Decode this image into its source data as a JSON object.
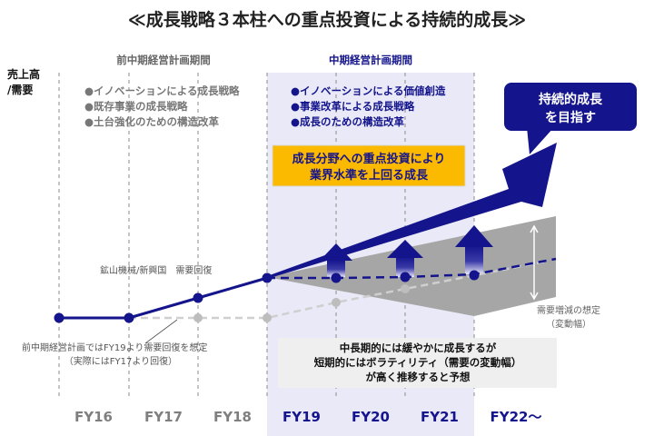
{
  "title": "≪成長戦略３本柱への重点投資による持続的成長≫",
  "y_axis_label": [
    "売上高",
    "/需要"
  ],
  "previous_plan": {
    "label": "前中期経営計画期間",
    "bullets": [
      "●イノベーションによる成長戦略",
      "●既存事業の成長戦略",
      "●土台強化のための構造改革"
    ]
  },
  "current_plan": {
    "label": "中期経営計画期間",
    "bullets": [
      "●イノベーションによる価値創造",
      "●事業改革による成長戦略",
      "●成長のための構造改革"
    ]
  },
  "investment_box": [
    "成長分野への重点投資により",
    "業界水準を上回る成長"
  ],
  "goal_callout": [
    "持続的成長",
    "を目指す"
  ],
  "recovery_note": "鉱山機械/新興国　需要回復",
  "assumption_note": [
    "前中期経営計画ではFY19より需要回復を想定",
    "（実際にはFY17より回復）"
  ],
  "volatility_label": [
    "需要増減の想定",
    "（変動幅）"
  ],
  "outlook_box": [
    "中長期的には緩やかに成長するが",
    "短期的にはボラティリティ（需要の変動幅）",
    "が高く推移すると予想"
  ],
  "fiscal_years": [
    {
      "label": "FY16",
      "period": "previous"
    },
    {
      "label": "FY17",
      "period": "previous"
    },
    {
      "label": "FY18",
      "period": "previous"
    },
    {
      "label": "FY19",
      "period": "current"
    },
    {
      "label": "FY20",
      "period": "current"
    },
    {
      "label": "FY21",
      "period": "current"
    },
    {
      "label": "FY22〜",
      "period": "current"
    }
  ],
  "colors": {
    "navy": "#14148c",
    "orange": "#fbb900",
    "gray": "#a6a6a6",
    "shade": "#e9e9f7",
    "past_label": "#7f7f7f"
  }
}
